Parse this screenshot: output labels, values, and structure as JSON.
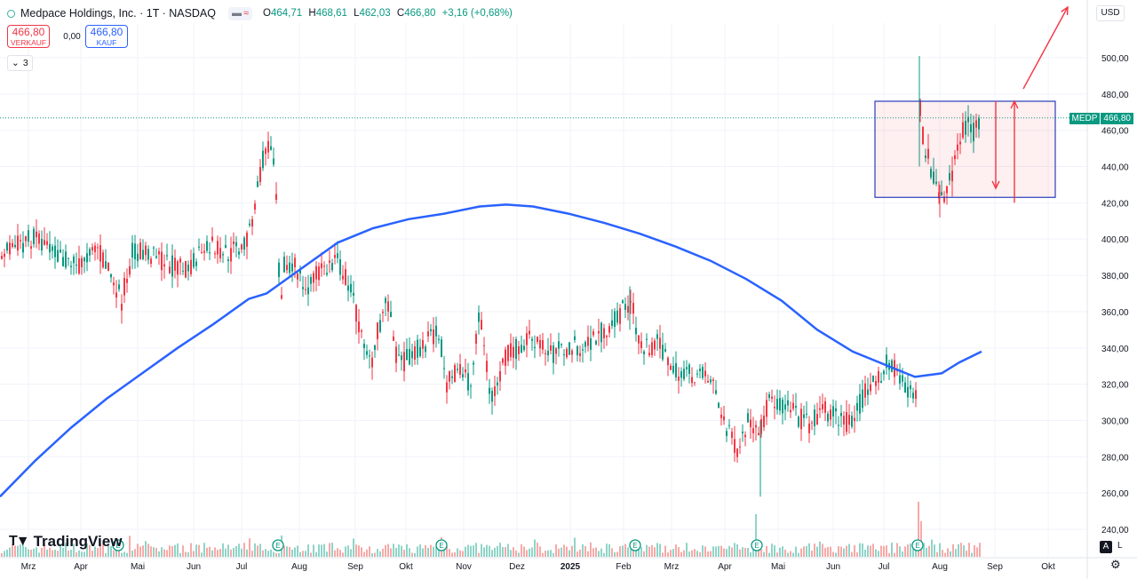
{
  "header": {
    "title": "Medpace Holdings, Inc. · 1T · NASDAQ",
    "ohlc": [
      {
        "k": "O",
        "v": "464,71"
      },
      {
        "k": "H",
        "v": "468,61"
      },
      {
        "k": "L",
        "v": "462,03"
      },
      {
        "k": "C",
        "v": "466,80"
      },
      {
        "k": "",
        "v": "+3,16 (+0,68%)"
      }
    ]
  },
  "trade": {
    "sell_price": "466,80",
    "sell_label": "VERKAUF",
    "spread": "0,00",
    "buy_price": "466,80",
    "buy_label": "KAUF"
  },
  "indicators_count": "3",
  "currency": "USD",
  "brand": "TradingView",
  "bottom": {
    "auto": "A",
    "log": "L"
  },
  "last_price": {
    "ticker": "MEDP",
    "value": "466,80"
  },
  "chart_data": {
    "type": "candlestick",
    "y_ticks": [
      "240,00",
      "260,00",
      "280,00",
      "300,00",
      "320,00",
      "340,00",
      "360,00",
      "380,00",
      "400,00",
      "420,00",
      "440,00",
      "460,00",
      "480,00",
      "500,00"
    ],
    "x_ticks": [
      {
        "label": "Mrz",
        "x": 32
      },
      {
        "label": "Apr",
        "x": 91
      },
      {
        "label": "Mai",
        "x": 155
      },
      {
        "label": "Jun",
        "x": 218
      },
      {
        "label": "Jul",
        "x": 272
      },
      {
        "label": "Aug",
        "x": 337
      },
      {
        "label": "Sep",
        "x": 400
      },
      {
        "label": "Okt",
        "x": 457
      },
      {
        "label": "Nov",
        "x": 522
      },
      {
        "label": "Dez",
        "x": 582
      },
      {
        "label": "2025",
        "x": 642,
        "bold": true
      },
      {
        "label": "Feb",
        "x": 702
      },
      {
        "label": "Mrz",
        "x": 756
      },
      {
        "label": "Apr",
        "x": 816
      },
      {
        "label": "Mai",
        "x": 876
      },
      {
        "label": "Jun",
        "x": 938
      },
      {
        "label": "Jul",
        "x": 995
      },
      {
        "label": "Aug",
        "x": 1058
      },
      {
        "label": "Sep",
        "x": 1120
      },
      {
        "label": "Okt",
        "x": 1180
      }
    ],
    "y_range": [
      230,
      510
    ],
    "last_value": 466.8,
    "ma_series": {
      "name": "",
      "color": "#2962ff",
      "points": [
        [
          0,
          258
        ],
        [
          40,
          278
        ],
        [
          80,
          296
        ],
        [
          120,
          312
        ],
        [
          160,
          326
        ],
        [
          200,
          340
        ],
        [
          240,
          353
        ],
        [
          280,
          367
        ],
        [
          300,
          370
        ],
        [
          340,
          384
        ],
        [
          380,
          398
        ],
        [
          420,
          406
        ],
        [
          460,
          411
        ],
        [
          500,
          414
        ],
        [
          540,
          418
        ],
        [
          570,
          419
        ],
        [
          600,
          418
        ],
        [
          640,
          414
        ],
        [
          680,
          409
        ],
        [
          720,
          403
        ],
        [
          760,
          396
        ],
        [
          800,
          388
        ],
        [
          840,
          378
        ],
        [
          880,
          366
        ],
        [
          920,
          350
        ],
        [
          960,
          338
        ],
        [
          990,
          332
        ],
        [
          1030,
          324
        ],
        [
          1060,
          326
        ],
        [
          1080,
          332
        ],
        [
          1105,
          338
        ]
      ]
    },
    "candles": {
      "seed": 7,
      "anchors": [
        [
          0,
          390
        ],
        [
          20,
          398
        ],
        [
          40,
          400
        ],
        [
          60,
          392
        ],
        [
          90,
          385
        ],
        [
          110,
          394
        ],
        [
          130,
          375
        ],
        [
          137,
          366
        ],
        [
          150,
          395
        ],
        [
          180,
          388
        ],
        [
          210,
          382
        ],
        [
          230,
          398
        ],
        [
          260,
          392
        ],
        [
          280,
          400
        ],
        [
          296,
          445
        ],
        [
          304,
          452
        ],
        [
          310,
          432
        ],
        [
          316,
          356
        ],
        [
          320,
          385
        ],
        [
          330,
          388
        ],
        [
          345,
          372
        ],
        [
          360,
          382
        ],
        [
          380,
          388
        ],
        [
          390,
          378
        ],
        [
          398,
          366
        ],
        [
          410,
          338
        ],
        [
          418,
          332
        ],
        [
          426,
          352
        ],
        [
          436,
          366
        ],
        [
          448,
          330
        ],
        [
          468,
          338
        ],
        [
          495,
          350
        ],
        [
          502,
          318
        ],
        [
          515,
          330
        ],
        [
          530,
          320
        ],
        [
          540,
          358
        ],
        [
          550,
          322
        ],
        [
          556,
          312
        ],
        [
          570,
          336
        ],
        [
          600,
          346
        ],
        [
          620,
          336
        ],
        [
          640,
          340
        ],
        [
          660,
          342
        ],
        [
          680,
          350
        ],
        [
          700,
          360
        ],
        [
          712,
          366
        ],
        [
          720,
          338
        ],
        [
          740,
          342
        ],
        [
          760,
          328
        ],
        [
          790,
          325
        ],
        [
          805,
          318
        ],
        [
          818,
          294
        ],
        [
          830,
          285
        ],
        [
          842,
          300
        ],
        [
          856,
          296
        ],
        [
          868,
          312
        ],
        [
          890,
          305
        ],
        [
          910,
          298
        ],
        [
          930,
          305
        ],
        [
          960,
          298
        ],
        [
          975,
          318
        ],
        [
          985,
          320
        ],
        [
          1000,
          332
        ],
        [
          1012,
          326
        ],
        [
          1022,
          318
        ],
        [
          1032,
          312
        ]
      ],
      "gap_anchors": [
        [
          1036,
          470
        ],
        [
          1040,
          450
        ],
        [
          1046,
          444
        ],
        [
          1052,
          432
        ],
        [
          1058,
          428
        ],
        [
          1064,
          426
        ],
        [
          1070,
          432
        ],
        [
          1076,
          452
        ],
        [
          1082,
          460
        ],
        [
          1088,
          464
        ],
        [
          1096,
          460
        ],
        [
          1104,
          466.8
        ]
      ]
    },
    "volume": {
      "baseline_y": 627,
      "max_h": 22,
      "spikes": [
        [
          318,
          24
        ],
        [
          498,
          22
        ],
        [
          852,
          48
        ],
        [
          1034,
          62
        ],
        [
          1038,
          40
        ]
      ]
    },
    "earnings_marks": [
      133,
      313,
      497,
      715,
      852,
      1033
    ],
    "rect_box": {
      "x0": 985,
      "x1": 1188,
      "y_low": 423,
      "y_high": 476
    },
    "arrows": [
      {
        "x": 1121,
        "from": 476,
        "to": 428
      },
      {
        "x": 1142,
        "from": 420,
        "to": 476
      }
    ],
    "trend_arrow": {
      "x0": 1152,
      "y0": 100,
      "x1": 1202,
      "y1": 8
    }
  }
}
